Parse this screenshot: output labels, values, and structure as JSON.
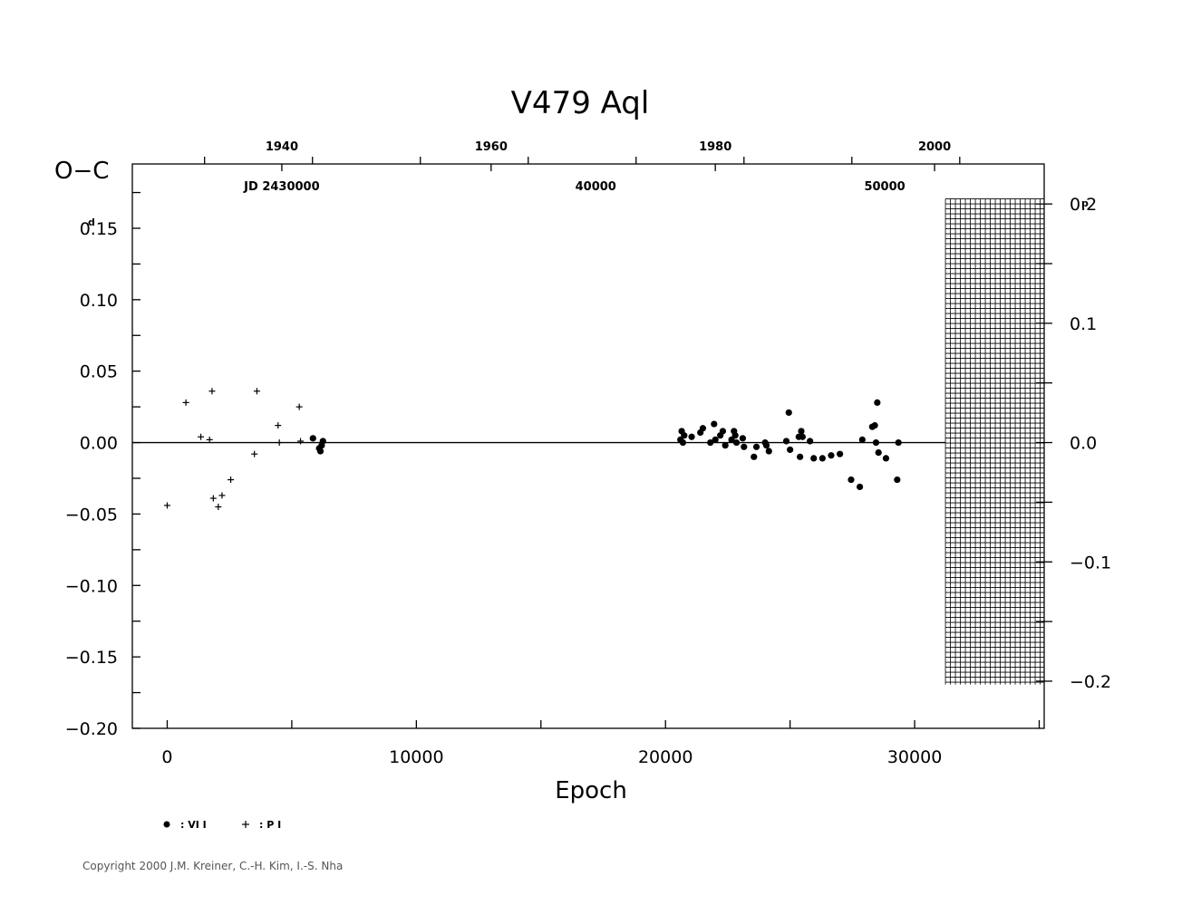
{
  "chart_data": {
    "type": "scatter",
    "title": "V479  Aql",
    "xlabel": "Epoch",
    "ylabel": "O−C",
    "y_unit_left": "d",
    "y_unit_right": "p",
    "xlim": [
      -1400,
      35200
    ],
    "ylim": [
      -0.2,
      0.195
    ],
    "x_ticks": [
      "0",
      "10000",
      "20000",
      "30000"
    ],
    "x_tick_values": [
      0,
      10000,
      20000,
      30000
    ],
    "y_ticks_left": [
      "0.15",
      "0.10",
      "0.05",
      "0.00",
      "−0.05",
      "−0.10",
      "−0.15",
      "−0.20"
    ],
    "y_tick_values_left": [
      0.15,
      0.1,
      0.05,
      0.0,
      -0.05,
      -0.1,
      -0.15,
      -0.2
    ],
    "y_ticks_right": [
      "0.2",
      "0.1",
      "0.0",
      "−0.1",
      "−0.2"
    ],
    "y_tick_values_right": [
      0.2,
      0.1,
      0.0,
      -0.1,
      -0.2
    ],
    "year_ticks": [
      "1940",
      "1960",
      "1980",
      "2000"
    ],
    "year_tick_epochs": [
      4600,
      13000,
      22000,
      30800
    ],
    "jd_labels": [
      "JD  2430000",
      "40000",
      "50000"
    ],
    "jd_label_epochs": [
      4600,
      17200,
      28800
    ],
    "legend": [
      {
        "symbol": "dot",
        "label": ": VI I"
      },
      {
        "symbol": "plus",
        "label": ": P I"
      }
    ],
    "copyright": "Copyright 2000 J.M. Kreiner, C.-H. Kim, I.-S. Nha",
    "hatched_region_epoch": [
      30800,
      35200
    ],
    "hatched_region_oc": [
      -0.175,
      0.175
    ],
    "series": [
      {
        "name": "P I",
        "marker": "plus",
        "points": [
          [
            0,
            -0.044
          ],
          [
            750,
            0.028
          ],
          [
            1350,
            0.004
          ],
          [
            1700,
            0.002
          ],
          [
            1800,
            0.036
          ],
          [
            1850,
            -0.039
          ],
          [
            2050,
            -0.045
          ],
          [
            2200,
            -0.037
          ],
          [
            2550,
            -0.026
          ],
          [
            3500,
            -0.008
          ],
          [
            3600,
            0.036
          ],
          [
            4450,
            0.012
          ],
          [
            4500,
            0.0
          ],
          [
            5300,
            0.025
          ],
          [
            5350,
            0.001
          ]
        ]
      },
      {
        "name": "VI I",
        "marker": "dot",
        "points": [
          [
            5850,
            0.003
          ],
          [
            6100,
            -0.004
          ],
          [
            6150,
            -0.006
          ],
          [
            6200,
            -0.002
          ],
          [
            6250,
            0.001
          ],
          [
            20600,
            0.002
          ],
          [
            20650,
            0.008
          ],
          [
            20700,
            0.0
          ],
          [
            20750,
            0.005
          ],
          [
            21050,
            0.004
          ],
          [
            21400,
            0.007
          ],
          [
            21500,
            0.01
          ],
          [
            21800,
            0.0
          ],
          [
            21950,
            0.013
          ],
          [
            22000,
            0.002
          ],
          [
            22200,
            0.005
          ],
          [
            22300,
            0.008
          ],
          [
            22400,
            -0.002
          ],
          [
            22650,
            0.002
          ],
          [
            22750,
            0.008
          ],
          [
            22800,
            0.005
          ],
          [
            22850,
            0.0
          ],
          [
            23100,
            0.003
          ],
          [
            23150,
            -0.003
          ],
          [
            23550,
            -0.01
          ],
          [
            23650,
            -0.003
          ],
          [
            24000,
            0.0
          ],
          [
            24050,
            -0.002
          ],
          [
            24150,
            -0.006
          ],
          [
            24850,
            0.001
          ],
          [
            24950,
            0.021
          ],
          [
            25000,
            -0.005
          ],
          [
            25350,
            0.004
          ],
          [
            25400,
            -0.01
          ],
          [
            25450,
            0.008
          ],
          [
            25500,
            0.004
          ],
          [
            25800,
            0.001
          ],
          [
            25950,
            -0.011
          ],
          [
            26300,
            -0.011
          ],
          [
            26650,
            -0.009
          ],
          [
            27000,
            -0.008
          ],
          [
            27450,
            -0.026
          ],
          [
            27800,
            -0.031
          ],
          [
            27900,
            0.002
          ],
          [
            28300,
            0.011
          ],
          [
            28400,
            0.012
          ],
          [
            28500,
            0.028
          ],
          [
            28450,
            0.0
          ],
          [
            28550,
            -0.007
          ],
          [
            28850,
            -0.011
          ],
          [
            29300,
            -0.026
          ],
          [
            29350,
            0.0
          ]
        ]
      }
    ]
  }
}
